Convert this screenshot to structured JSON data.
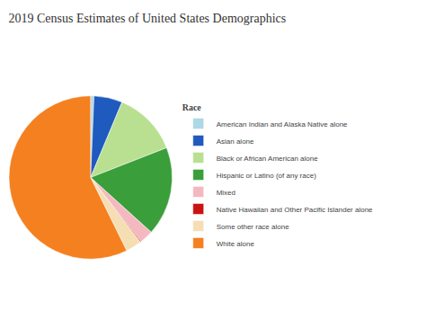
{
  "chart_data": {
    "type": "pie",
    "title": "2019 Census Estimates of United States Demographics",
    "legend_title": "Race",
    "categories": [
      "American Indian and Alaska Native alone",
      "Asian alone",
      "Black or African American alone",
      "Hispanic or Latino (of any race)",
      "Mixed",
      "Native Hawaiian and Other Pacific Islander alone",
      "Some other race alone",
      "White alone"
    ],
    "values": [
      0.7,
      5.9,
      13.4,
      18.5,
      2.8,
      0.2,
      3.3,
      60.1
    ],
    "colors": [
      "#add8e6",
      "#1f5abf",
      "#b8e090",
      "#3a9e3a",
      "#f4b8c0",
      "#cc1111",
      "#f5deb3",
      "#f48020"
    ],
    "legend": "right"
  }
}
